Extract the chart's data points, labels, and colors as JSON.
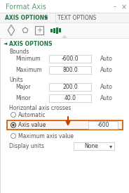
{
  "title": "Format Axis",
  "tab1": "AXIS OPTIONS",
  "tab2": "TEXT OPTIONS",
  "section": "AXIS OPTIONS",
  "bounds_label": "Bounds",
  "minimum_label": "Minimum",
  "minimum_value": "-600.0",
  "maximum_label": "Maximum",
  "maximum_value": "800.0",
  "auto_label": "Auto",
  "units_label": "Units",
  "major_label": "Major",
  "major_value": "200.0",
  "minor_label": "Minor",
  "minor_value": "40.0",
  "haxis_label": "Horizontal axis crosses",
  "automatic_label": "Automatic",
  "axis_value_label": "Axis value",
  "axis_value": "-600",
  "max_axis_label": "Maximum axis value",
  "display_units_label": "Display units",
  "display_units_value": "None",
  "bg_color": "#f2f2f2",
  "panel_bg": "#ffffff",
  "header_bg": "#ffffff",
  "title_color": "#5a9e6f",
  "tab_active_color": "#217346",
  "tab_inactive_color": "#595959",
  "section_color": "#217346",
  "text_color": "#3a3a3a",
  "label_color": "#555555",
  "input_bg": "#ffffff",
  "input_border": "#c0c0c0",
  "highlight_border": "#d06010",
  "arrow_color": "#c04000",
  "radio_selected_color": "#404040",
  "divider_color": "#d8d8d8",
  "icon_color": "#888888",
  "icon_green": "#217346"
}
